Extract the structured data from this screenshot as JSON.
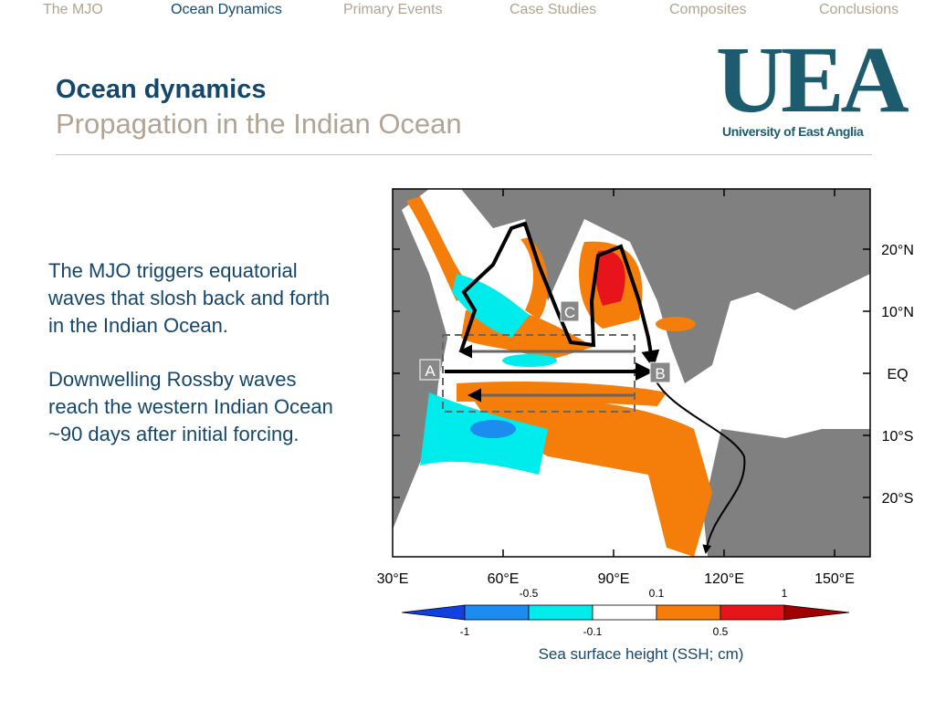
{
  "nav": [
    "The MJO",
    "Ocean Dynamics",
    "Primary Events",
    "Case Studies",
    "Composites",
    "Conclusions"
  ],
  "header": {
    "title": "Ocean dynamics",
    "subtitle": "Propagation in the Indian Ocean"
  },
  "logo": {
    "mark": "UEA",
    "name": "University of East Anglia"
  },
  "body": {
    "paragraphs": [
      "The MJO triggers equatorial waves that slosh back and forth in the Indian Ocean.",
      "Downwelling Rossby waves reach the western Indian Ocean ~90 days after initial forcing."
    ]
  },
  "figure": {
    "lon_labels": [
      "30°E",
      "60°E",
      "90°E",
      "120°E",
      "150°E"
    ],
    "lat_labels": [
      "20°N",
      "10°N",
      "EQ",
      "10°S",
      "20°S"
    ],
    "point_labels": [
      "A",
      "B",
      "C"
    ],
    "colorbar": {
      "top_labels": [
        "-0.5",
        "0.1",
        "1"
      ],
      "bottom_labels": [
        "-1",
        "-0.1",
        "0.5"
      ]
    },
    "caption": "Sea surface height (SSH; cm)"
  }
}
